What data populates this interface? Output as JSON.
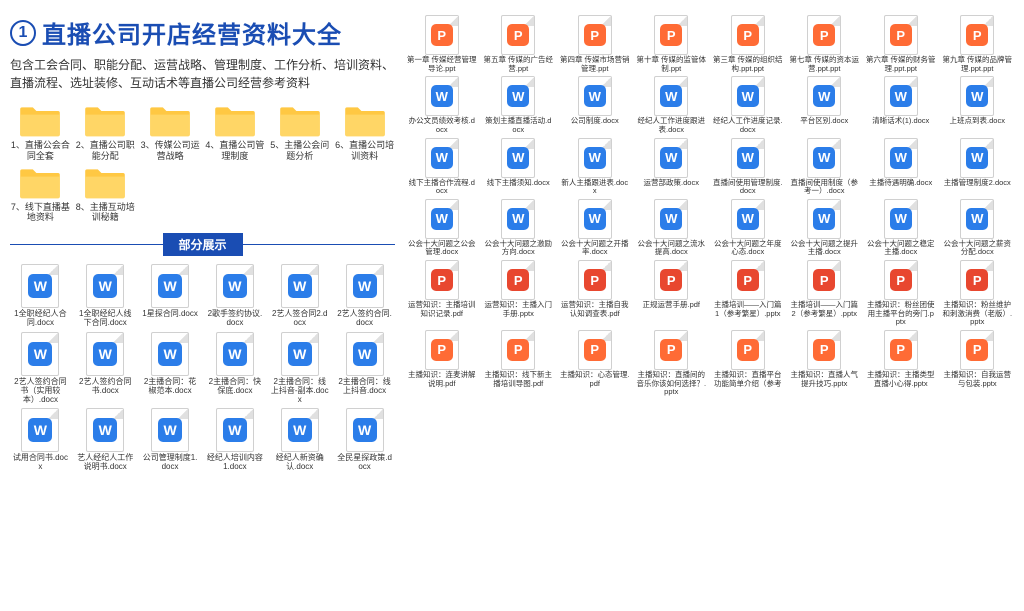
{
  "header": {
    "number": "1",
    "title": "直播公司开店经营资料大全",
    "subtitle": "包含工会合同、职能分配、运营战略、管理制度、工作分析、培训资料、直播流程、选址装修、互动话术等直播公司经营参考资料"
  },
  "section_label": "部分展示",
  "folders": [
    {
      "label": "1、直播公会合同全套"
    },
    {
      "label": "2、直播公司职能分配"
    },
    {
      "label": "3、传媒公司运营战略"
    },
    {
      "label": "4、直播公司管理制度"
    },
    {
      "label": "5、主播公会问题分析"
    },
    {
      "label": "6、直播公司培训资料"
    },
    {
      "label": "7、线下直播基地资料"
    },
    {
      "label": "8、主播互动培训秘籍"
    }
  ],
  "left_files": [
    {
      "label": "1全职经纪人合同.docx",
      "type": "w"
    },
    {
      "label": "1全职经纪人线下合同.docx",
      "type": "w"
    },
    {
      "label": "1星探合同.docx",
      "type": "w"
    },
    {
      "label": "2歌手签约协议.docx",
      "type": "w"
    },
    {
      "label": "2艺人签合同2.docx",
      "type": "w"
    },
    {
      "label": "2艺人签约合同.docx",
      "type": "w"
    },
    {
      "label": "2艺人签约合同书（实用较本）.docx",
      "type": "w"
    },
    {
      "label": "2艺人签约合同书.docx",
      "type": "w"
    },
    {
      "label": "2主播合同：花椒范本.docx",
      "type": "w"
    },
    {
      "label": "2主播合同：快保底.docx",
      "type": "w"
    },
    {
      "label": "2主播合同：线上抖音-副本.docx",
      "type": "w"
    },
    {
      "label": "2主播合同：线上抖音.docx",
      "type": "w"
    },
    {
      "label": "试用合同书.docx",
      "type": "w"
    },
    {
      "label": "艺人经纪人工作说明书.docx",
      "type": "w"
    },
    {
      "label": "公司管理制度1.docx",
      "type": "w"
    },
    {
      "label": "经纪人培训内容1.docx",
      "type": "w"
    },
    {
      "label": "经纪人新资确认.docx",
      "type": "w"
    },
    {
      "label": "全民星探政策.docx",
      "type": "w"
    }
  ],
  "right_files": [
    {
      "label": "第一章 传媒经营管理导论.ppt",
      "type": "p"
    },
    {
      "label": "第五章 传媒的广告经营.ppt",
      "type": "p"
    },
    {
      "label": "第四章 传媒市场营销管理.ppt",
      "type": "p"
    },
    {
      "label": "第十章 传媒的监管体制.ppt",
      "type": "p"
    },
    {
      "label": "第三章 传媒的组织结构.ppt.ppt",
      "type": "p"
    },
    {
      "label": "第七章 传媒的资本运营.ppt.ppt",
      "type": "p"
    },
    {
      "label": "第六章 传媒的财务管理.ppt.ppt",
      "type": "p"
    },
    {
      "label": "第九章 传媒的品牌管理.ppt.ppt",
      "type": "p"
    },
    {
      "label": "办公文员绩效考核.docx",
      "type": "w"
    },
    {
      "label": "策划主播直播活动.docx",
      "type": "w"
    },
    {
      "label": "公司制度.docx",
      "type": "w"
    },
    {
      "label": "经纪人工作进度跟进表.docx",
      "type": "w"
    },
    {
      "label": "经纪人工作进度记录.docx",
      "type": "w"
    },
    {
      "label": "平台区别.docx",
      "type": "w"
    },
    {
      "label": "清晰话术(1).docx",
      "type": "w"
    },
    {
      "label": "上班点到表.docx",
      "type": "w"
    },
    {
      "label": "线下主播合作流程.docx",
      "type": "w"
    },
    {
      "label": "线下主播须知.docx",
      "type": "w"
    },
    {
      "label": "新人主播跟进表.docx",
      "type": "w"
    },
    {
      "label": "运营部政策.docx",
      "type": "w"
    },
    {
      "label": "直播间使用管理制度.docx",
      "type": "w"
    },
    {
      "label": "直播间使用制度（参考一）.docx",
      "type": "w"
    },
    {
      "label": "主播待遇明确.docx",
      "type": "w"
    },
    {
      "label": "主播管理制度2.docx",
      "type": "w"
    },
    {
      "label": "公会十大问题之公会管理.docx",
      "type": "w"
    },
    {
      "label": "公会十大问题之激励方向.docx",
      "type": "w"
    },
    {
      "label": "公会十大问题之开播率.docx",
      "type": "w"
    },
    {
      "label": "公会十大问题之流水提高.docx",
      "type": "w"
    },
    {
      "label": "公会十大问题之年度心态.docx",
      "type": "w"
    },
    {
      "label": "公会十大问题之提升主播.docx",
      "type": "w"
    },
    {
      "label": "公会十大问题之稳定主播.docx",
      "type": "w"
    },
    {
      "label": "公会十大问题之薪资分配.docx",
      "type": "w"
    },
    {
      "label": "运营知识：主播培训知识记录.pdf",
      "type": "pr"
    },
    {
      "label": "运营知识：主播入门手册.pptx",
      "type": "pr"
    },
    {
      "label": "运营知识：主播自我认知调查表.pdf",
      "type": "pr"
    },
    {
      "label": "正规运营手册.pdf",
      "type": "pr"
    },
    {
      "label": "主播培训——入门篇1（参考繁星）.pptx",
      "type": "pr"
    },
    {
      "label": "主播培训——入门篇2（参考繁星）.pptx",
      "type": "pr"
    },
    {
      "label": "主播知识：粉丝团使用主播平台的旁门.pptx",
      "type": "pr"
    },
    {
      "label": "主播知识：粉丝维护和刺激消费（老版）.pptx",
      "type": "pr"
    },
    {
      "label": "主播知识：连麦讲解说明.pdf",
      "type": "p"
    },
    {
      "label": "主播知识：线下新主播培训导图.pdf",
      "type": "p"
    },
    {
      "label": "主播知识：心态管理.pdf",
      "type": "p"
    },
    {
      "label": "主播知识：直播间的音乐你该如何选择？.pptx",
      "type": "p"
    },
    {
      "label": "主播知识：直播平台功能简单介绍（参考",
      "type": "p"
    },
    {
      "label": "主播知识：直播人气提升技巧.pptx",
      "type": "p"
    },
    {
      "label": "主播知识：主播类型直播小心得.pptx",
      "type": "p"
    },
    {
      "label": "主播知识：自我运营与包装.pptx",
      "type": "p"
    }
  ],
  "colors": {
    "primary": "#1a4db3",
    "folder": "#ffc843",
    "word": "#2b7de9",
    "ppt": "#ff6b35",
    "pdf_red": "#e8472f"
  }
}
